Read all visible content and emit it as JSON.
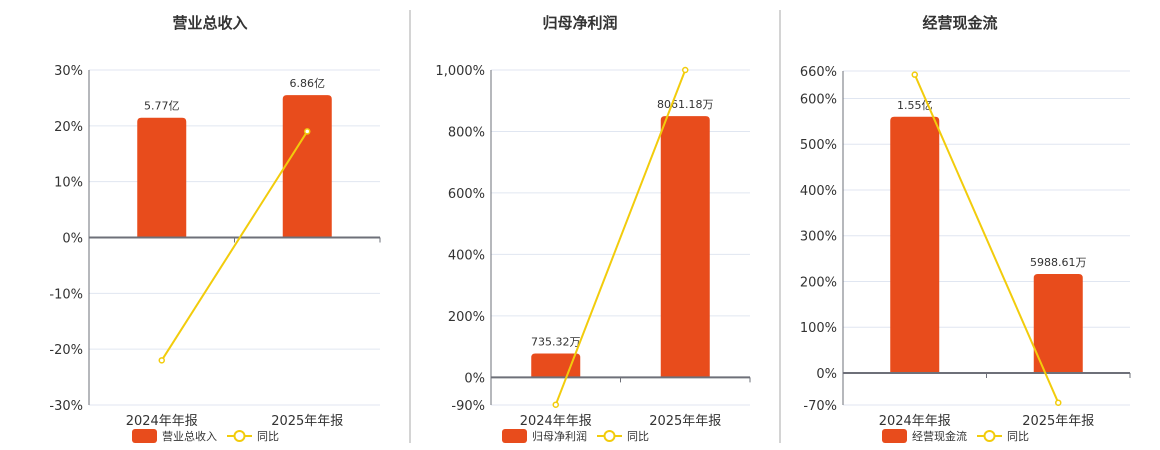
{
  "colors": {
    "bar": "#e84c1c",
    "line": "#f2cc0c",
    "grid": "#e0e6f1",
    "axis": "#6e7079",
    "divider": "#aaaaaa"
  },
  "chart_data": [
    {
      "type": "bar+line",
      "title": "营业总收入",
      "categories": [
        "2024年年报",
        "2025年年报"
      ],
      "bar_series": {
        "name": "营业总收入",
        "values_wan": [
          57700,
          68600
        ],
        "labels": [
          "5.77亿",
          "6.86亿"
        ]
      },
      "line_series": {
        "name": "同比",
        "values": [
          -22,
          19
        ]
      },
      "yticks": [
        "30%",
        "20%",
        "10%",
        "0%",
        "-10%",
        "-20%",
        "-30%"
      ],
      "ytick_values": [
        30,
        20,
        10,
        0,
        -10,
        -20,
        -30
      ],
      "ylim": [
        -30,
        30
      ],
      "grid": true,
      "legend": "bottom"
    },
    {
      "type": "bar+line",
      "title": "归母净利润",
      "categories": [
        "2024年年报",
        "2025年年报"
      ],
      "bar_series": {
        "name": "归母净利润",
        "values_wan": [
          735.32,
          8061.18
        ],
        "labels": [
          "735.32万",
          "8061.18万"
        ]
      },
      "line_series": {
        "name": "同比",
        "values": [
          -89,
          1000
        ]
      },
      "yticks": [
        "1,000%",
        "800%",
        "600%",
        "400%",
        "200%",
        "0%",
        "-90%"
      ],
      "ytick_values": [
        1000,
        800,
        600,
        400,
        200,
        0,
        -90
      ],
      "ylim": [
        -90,
        1000
      ],
      "grid": true,
      "legend": "bottom"
    },
    {
      "type": "bar+line",
      "title": "经营现金流",
      "categories": [
        "2024年年报",
        "2025年年报"
      ],
      "bar_series": {
        "name": "经营现金流",
        "values_wan": [
          15500,
          5988.61
        ],
        "labels": [
          "1.55亿",
          "5988.61万"
        ]
      },
      "line_series": {
        "name": "同比",
        "values": [
          652,
          -65
        ]
      },
      "yticks": [
        "660%",
        "600%",
        "500%",
        "400%",
        "300%",
        "200%",
        "100%",
        "0%",
        "-70%"
      ],
      "ytick_values": [
        660,
        600,
        500,
        400,
        300,
        200,
        100,
        0,
        -70
      ],
      "ylim": [
        -70,
        660
      ],
      "grid": true,
      "legend": "bottom"
    }
  ]
}
